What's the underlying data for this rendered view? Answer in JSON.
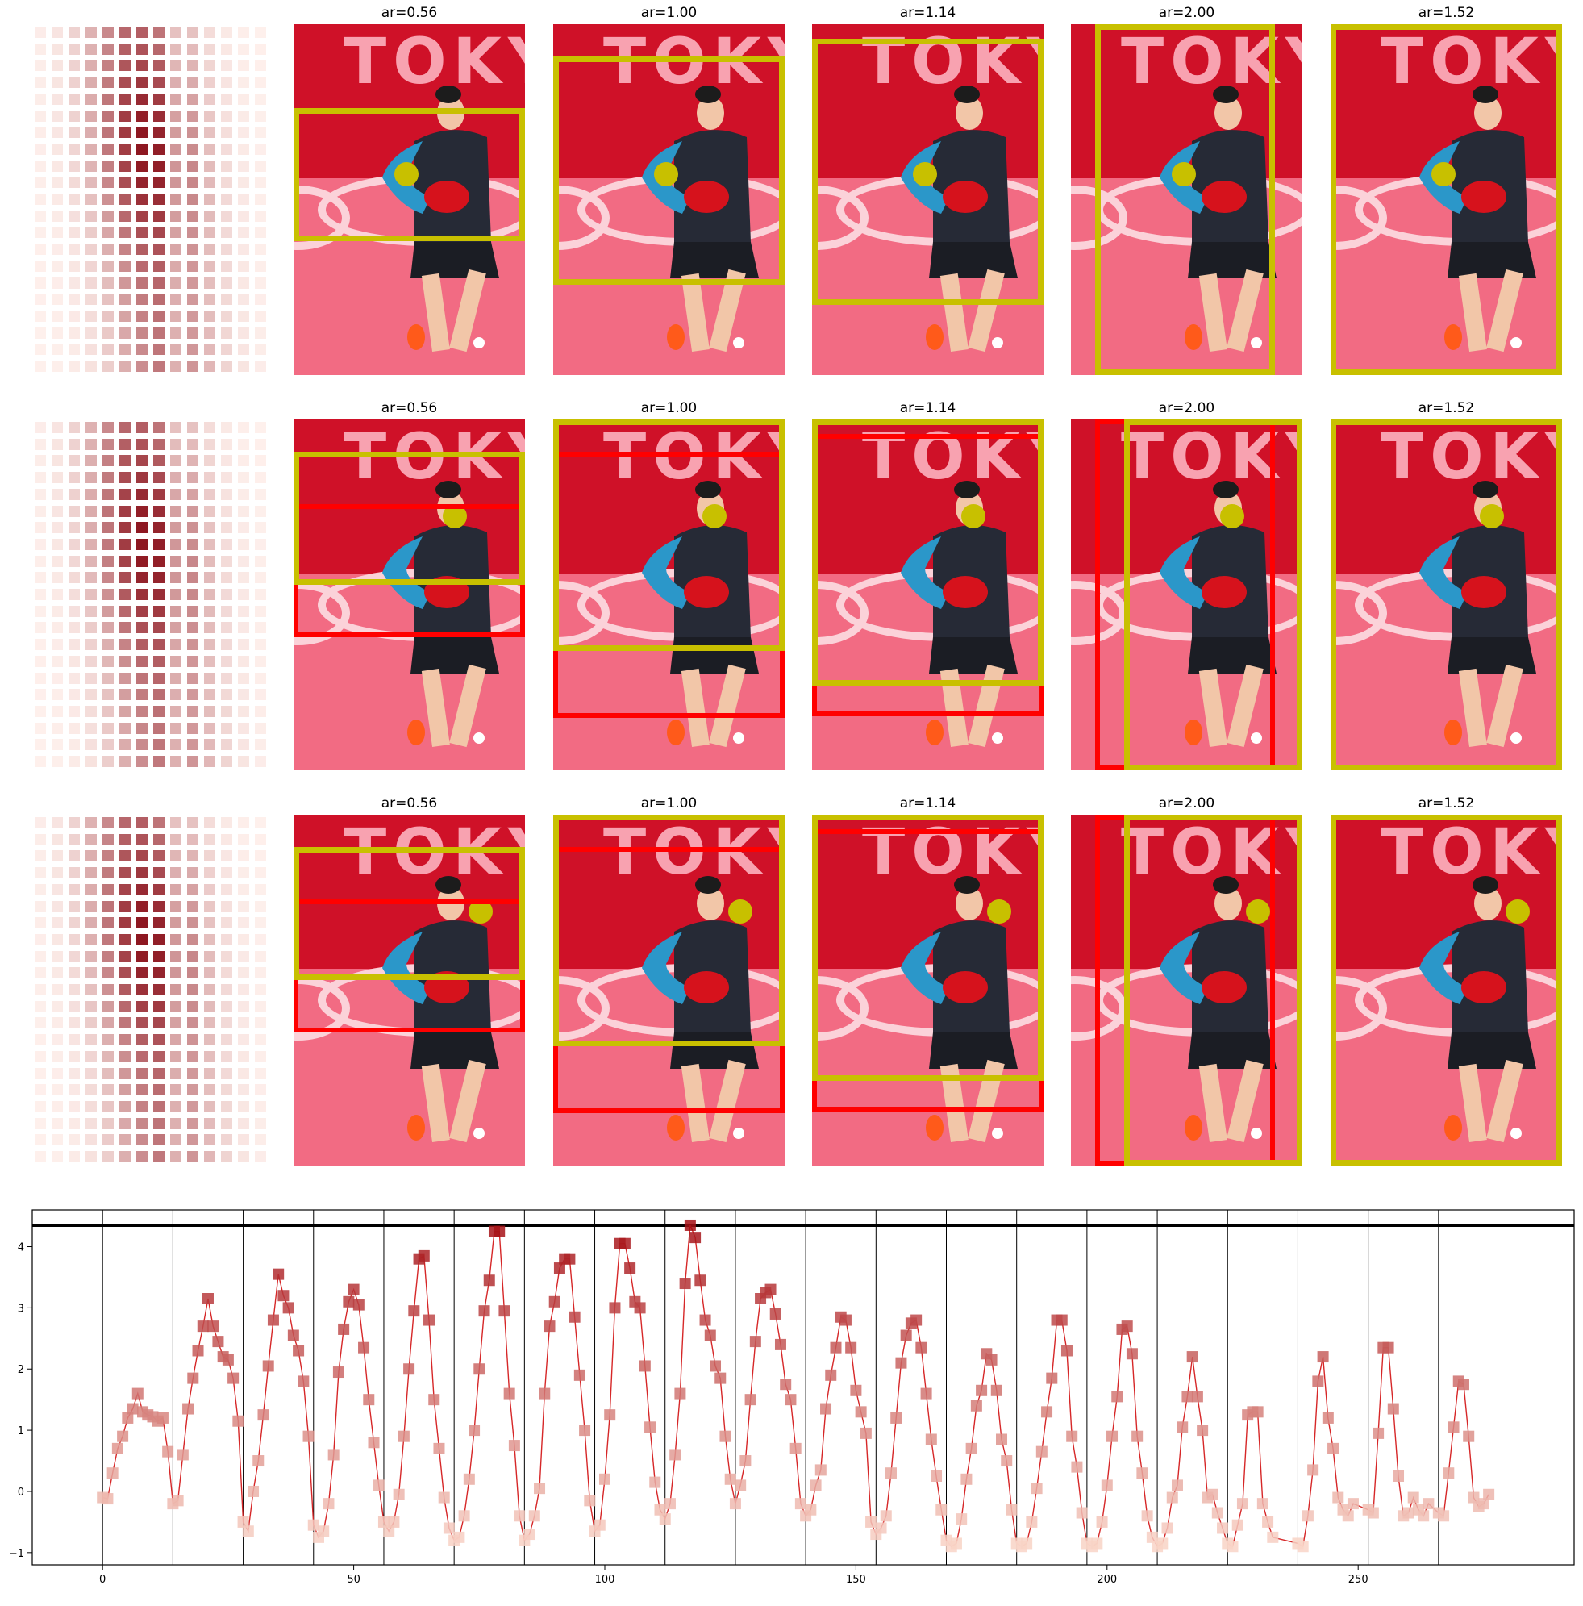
{
  "panel_titles": [
    "ar=0.56",
    "ar=1.00",
    "ar=1.14",
    "ar=2.00",
    "ar=1.52"
  ],
  "photo_word": "TOKY",
  "colors": {
    "box_yellow": "#c8c000",
    "box_red": "#ff0000",
    "line": "#d62728"
  },
  "chart_data": {
    "type": "line",
    "x_ticks": [
      0,
      50,
      100,
      150,
      200,
      250
    ],
    "y_ticks": [
      -1,
      0,
      1,
      2,
      3,
      4
    ],
    "xlim": [
      -14,
      293
    ],
    "ylim": [
      -1.2,
      4.6
    ],
    "hline": 4.35,
    "vlines": [
      0,
      14,
      28,
      42,
      56,
      70,
      84,
      98,
      112,
      126,
      140,
      154,
      168,
      182,
      196,
      210,
      224,
      238,
      252,
      266
    ],
    "series": [
      {
        "values": [
          [
            0,
            -0.1
          ],
          [
            1,
            -0.12
          ],
          [
            2,
            0.3
          ],
          [
            3,
            0.7
          ],
          [
            4,
            0.9
          ],
          [
            5,
            1.2
          ],
          [
            6,
            1.35
          ],
          [
            7,
            1.6
          ],
          [
            8,
            1.3
          ],
          [
            9,
            1.25
          ],
          [
            10,
            1.22
          ],
          [
            11,
            1.15
          ],
          [
            12,
            1.2
          ],
          [
            13,
            0.65
          ],
          [
            14,
            -0.2
          ],
          [
            15,
            -0.15
          ],
          [
            16,
            0.6
          ],
          [
            17,
            1.35
          ],
          [
            18,
            1.85
          ],
          [
            19,
            2.3
          ],
          [
            20,
            2.7
          ],
          [
            21,
            3.15
          ],
          [
            22,
            2.7
          ],
          [
            23,
            2.45
          ],
          [
            24,
            2.2
          ],
          [
            25,
            2.15
          ],
          [
            26,
            1.85
          ],
          [
            27,
            1.15
          ],
          [
            28,
            -0.5
          ],
          [
            29,
            -0.65
          ],
          [
            30,
            0.0
          ],
          [
            31,
            0.5
          ],
          [
            32,
            1.25
          ],
          [
            33,
            2.05
          ],
          [
            34,
            2.8
          ],
          [
            35,
            3.55
          ],
          [
            36,
            3.2
          ],
          [
            37,
            3.0
          ],
          [
            38,
            2.55
          ],
          [
            39,
            2.3
          ],
          [
            40,
            1.8
          ],
          [
            41,
            0.9
          ],
          [
            42,
            -0.55
          ],
          [
            43,
            -0.75
          ],
          [
            44,
            -0.65
          ],
          [
            45,
            -0.2
          ],
          [
            46,
            0.6
          ],
          [
            47,
            1.95
          ],
          [
            48,
            2.65
          ],
          [
            49,
            3.1
          ],
          [
            50,
            3.3
          ],
          [
            51,
            3.05
          ],
          [
            52,
            2.35
          ],
          [
            53,
            1.5
          ],
          [
            54,
            0.8
          ],
          [
            55,
            0.1
          ],
          [
            56,
            -0.5
          ],
          [
            57,
            -0.65
          ],
          [
            58,
            -0.5
          ],
          [
            59,
            -0.05
          ],
          [
            60,
            0.9
          ],
          [
            61,
            2.0
          ],
          [
            62,
            2.95
          ],
          [
            63,
            3.8
          ],
          [
            64,
            3.85
          ],
          [
            65,
            2.8
          ],
          [
            66,
            1.5
          ],
          [
            67,
            0.7
          ],
          [
            68,
            -0.1
          ],
          [
            69,
            -0.6
          ],
          [
            70,
            -0.8
          ],
          [
            71,
            -0.75
          ],
          [
            72,
            -0.4
          ],
          [
            73,
            0.2
          ],
          [
            74,
            1.0
          ],
          [
            75,
            2.0
          ],
          [
            76,
            2.95
          ],
          [
            77,
            3.45
          ],
          [
            78,
            4.25
          ],
          [
            79,
            4.25
          ],
          [
            80,
            2.95
          ],
          [
            81,
            1.6
          ],
          [
            82,
            0.75
          ],
          [
            83,
            -0.4
          ],
          [
            84,
            -0.8
          ],
          [
            85,
            -0.7
          ],
          [
            86,
            -0.4
          ],
          [
            87,
            0.05
          ],
          [
            88,
            1.6
          ],
          [
            89,
            2.7
          ],
          [
            90,
            3.1
          ],
          [
            91,
            3.65
          ],
          [
            92,
            3.8
          ],
          [
            93,
            3.8
          ],
          [
            94,
            2.85
          ],
          [
            95,
            1.9
          ],
          [
            96,
            1.0
          ],
          [
            97,
            -0.15
          ],
          [
            98,
            -0.65
          ],
          [
            99,
            -0.55
          ],
          [
            100,
            0.2
          ],
          [
            101,
            1.25
          ],
          [
            102,
            3.0
          ],
          [
            103,
            4.05
          ],
          [
            104,
            4.05
          ],
          [
            105,
            3.65
          ],
          [
            106,
            3.1
          ],
          [
            107,
            3.0
          ],
          [
            108,
            2.05
          ],
          [
            109,
            1.05
          ],
          [
            110,
            0.15
          ],
          [
            111,
            -0.3
          ],
          [
            112,
            -0.45
          ],
          [
            113,
            -0.2
          ],
          [
            114,
            0.6
          ],
          [
            115,
            1.6
          ],
          [
            116,
            3.4
          ],
          [
            117,
            4.35
          ],
          [
            118,
            4.15
          ],
          [
            119,
            3.45
          ],
          [
            120,
            2.8
          ],
          [
            121,
            2.55
          ],
          [
            122,
            2.05
          ],
          [
            123,
            1.85
          ],
          [
            124,
            0.9
          ],
          [
            125,
            0.2
          ],
          [
            126,
            -0.2
          ],
          [
            127,
            0.1
          ],
          [
            128,
            0.5
          ],
          [
            129,
            1.5
          ],
          [
            130,
            2.45
          ],
          [
            131,
            3.15
          ],
          [
            132,
            3.25
          ],
          [
            133,
            3.3
          ],
          [
            134,
            2.9
          ],
          [
            135,
            2.4
          ],
          [
            136,
            1.75
          ],
          [
            137,
            1.5
          ],
          [
            138,
            0.7
          ],
          [
            139,
            -0.2
          ],
          [
            140,
            -0.4
          ],
          [
            141,
            -0.3
          ],
          [
            142,
            0.1
          ],
          [
            143,
            0.35
          ],
          [
            144,
            1.35
          ],
          [
            145,
            1.9
          ],
          [
            146,
            2.35
          ],
          [
            147,
            2.85
          ],
          [
            148,
            2.8
          ],
          [
            149,
            2.35
          ],
          [
            150,
            1.65
          ],
          [
            151,
            1.3
          ],
          [
            152,
            0.95
          ],
          [
            153,
            -0.5
          ],
          [
            154,
            -0.7
          ],
          [
            155,
            -0.6
          ],
          [
            156,
            -0.4
          ],
          [
            157,
            0.3
          ],
          [
            158,
            1.2
          ],
          [
            159,
            2.1
          ],
          [
            160,
            2.55
          ],
          [
            161,
            2.75
          ],
          [
            162,
            2.8
          ],
          [
            163,
            2.35
          ],
          [
            164,
            1.6
          ],
          [
            165,
            0.85
          ],
          [
            166,
            0.25
          ],
          [
            167,
            -0.3
          ],
          [
            168,
            -0.8
          ],
          [
            169,
            -0.9
          ],
          [
            170,
            -0.85
          ],
          [
            171,
            -0.45
          ],
          [
            172,
            0.2
          ],
          [
            173,
            0.7
          ],
          [
            174,
            1.4
          ],
          [
            175,
            1.65
          ],
          [
            176,
            2.25
          ],
          [
            177,
            2.15
          ],
          [
            178,
            1.65
          ],
          [
            179,
            0.85
          ],
          [
            180,
            0.5
          ],
          [
            181,
            -0.3
          ],
          [
            182,
            -0.85
          ],
          [
            183,
            -0.9
          ],
          [
            184,
            -0.85
          ],
          [
            185,
            -0.5
          ],
          [
            186,
            0.05
          ],
          [
            187,
            0.65
          ],
          [
            188,
            1.3
          ],
          [
            189,
            1.85
          ],
          [
            190,
            2.8
          ],
          [
            191,
            2.8
          ],
          [
            192,
            2.3
          ],
          [
            193,
            0.9
          ],
          [
            194,
            0.4
          ],
          [
            195,
            -0.35
          ],
          [
            196,
            -0.85
          ],
          [
            197,
            -0.9
          ],
          [
            198,
            -0.85
          ],
          [
            199,
            -0.5
          ],
          [
            200,
            0.1
          ],
          [
            201,
            0.9
          ],
          [
            202,
            1.55
          ],
          [
            203,
            2.65
          ],
          [
            204,
            2.7
          ],
          [
            205,
            2.25
          ],
          [
            206,
            0.9
          ],
          [
            207,
            0.3
          ],
          [
            208,
            -0.4
          ],
          [
            209,
            -0.75
          ],
          [
            210,
            -0.9
          ],
          [
            211,
            -0.85
          ],
          [
            212,
            -0.6
          ],
          [
            213,
            -0.1
          ],
          [
            214,
            0.1
          ],
          [
            215,
            1.05
          ],
          [
            216,
            1.55
          ],
          [
            217,
            2.2
          ],
          [
            218,
            1.55
          ],
          [
            219,
            1.0
          ],
          [
            220,
            -0.1
          ],
          [
            221,
            -0.05
          ],
          [
            222,
            -0.35
          ],
          [
            223,
            -0.6
          ],
          [
            224,
            -0.85
          ],
          [
            225,
            -0.9
          ],
          [
            226,
            -0.55
          ],
          [
            227,
            -0.2
          ],
          [
            228,
            1.25
          ],
          [
            229,
            1.3
          ],
          [
            230,
            1.3
          ],
          [
            231,
            -0.2
          ],
          [
            232,
            -0.5
          ],
          [
            233,
            -0.75
          ],
          [
            238,
            -0.85
          ],
          [
            239,
            -0.9
          ],
          [
            240,
            -0.4
          ],
          [
            241,
            0.35
          ],
          [
            242,
            1.8
          ],
          [
            243,
            2.2
          ],
          [
            244,
            1.2
          ],
          [
            245,
            0.7
          ],
          [
            246,
            -0.1
          ],
          [
            247,
            -0.3
          ],
          [
            248,
            -0.4
          ],
          [
            249,
            -0.2
          ],
          [
            252,
            -0.3
          ],
          [
            253,
            -0.35
          ],
          [
            254,
            0.95
          ],
          [
            255,
            2.35
          ],
          [
            256,
            2.35
          ],
          [
            257,
            1.35
          ],
          [
            258,
            0.25
          ],
          [
            259,
            -0.4
          ],
          [
            260,
            -0.35
          ],
          [
            261,
            -0.1
          ],
          [
            262,
            -0.3
          ],
          [
            263,
            -0.4
          ],
          [
            264,
            -0.2
          ],
          [
            266,
            -0.35
          ],
          [
            267,
            -0.4
          ],
          [
            268,
            0.3
          ],
          [
            269,
            1.05
          ],
          [
            270,
            1.8
          ],
          [
            271,
            1.75
          ],
          [
            272,
            0.9
          ],
          [
            273,
            -0.1
          ],
          [
            274,
            -0.25
          ],
          [
            275,
            -0.2
          ],
          [
            276,
            -0.05
          ]
        ]
      }
    ]
  }
}
